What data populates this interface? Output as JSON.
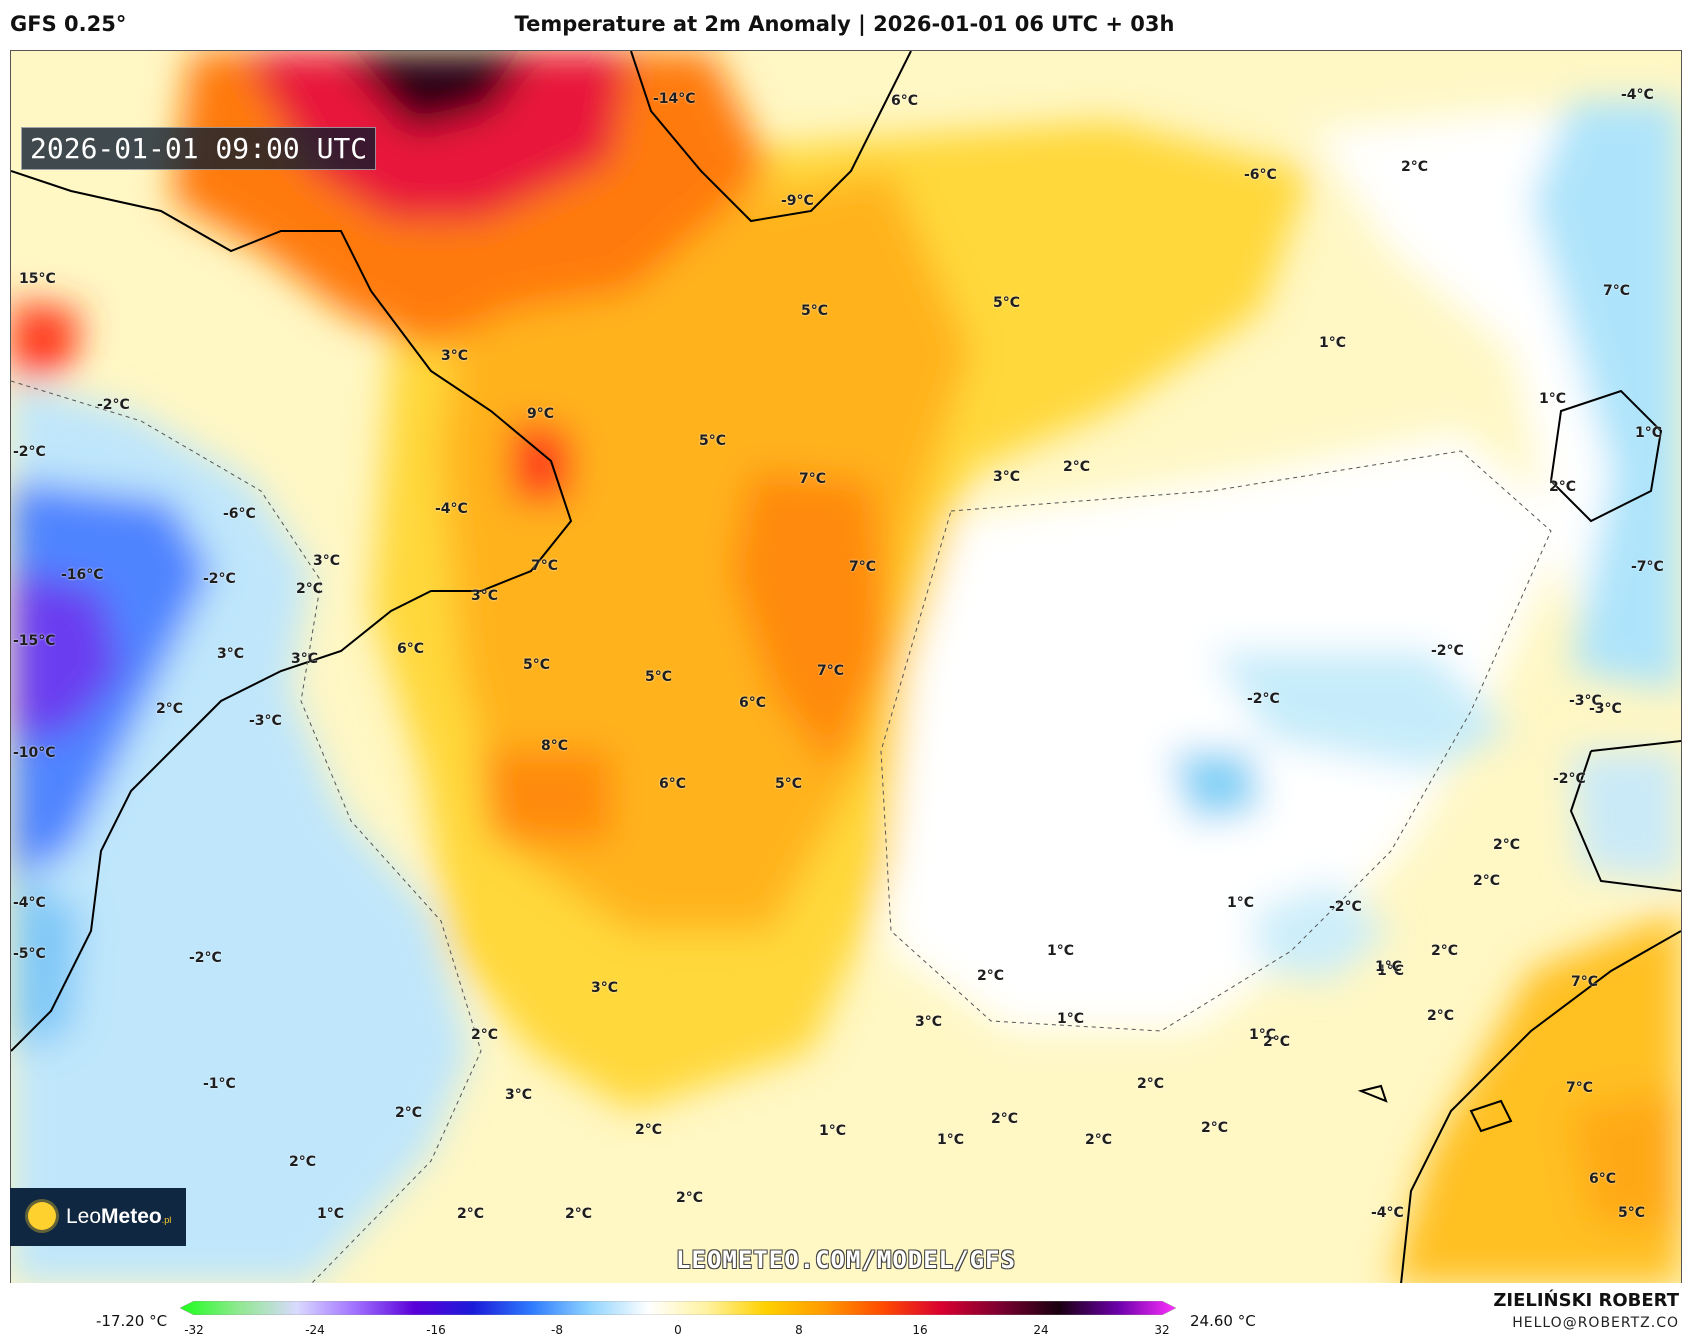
{
  "header": {
    "model": "GFS 0.25°",
    "title": "Temperature at 2m Anomaly | 2026-01-01 06 UTC + 03h"
  },
  "map": {
    "valid_time": "2026-01-01 09:00 UTC",
    "watermark_url": "LEOMETEO.COM/MODEL/GFS",
    "labels": [
      {
        "text": "-14°C"
      },
      {
        "text": "6°C"
      },
      {
        "text": "-9°C"
      },
      {
        "text": "-6°C"
      },
      {
        "text": "-4°C"
      },
      {
        "text": "2°C"
      },
      {
        "text": "15°C"
      },
      {
        "text": "5°C"
      },
      {
        "text": "5°C"
      },
      {
        "text": "1°C"
      },
      {
        "text": "1°C"
      },
      {
        "text": "-2°C"
      },
      {
        "text": "7°C"
      },
      {
        "text": "9°C"
      },
      {
        "text": "1°C"
      },
      {
        "text": "-2°C"
      },
      {
        "text": "3°C"
      },
      {
        "text": "5°C"
      },
      {
        "text": "7°C"
      },
      {
        "text": "3°C"
      },
      {
        "text": "2°C"
      },
      {
        "text": "-6°C"
      },
      {
        "text": "-4°C"
      },
      {
        "text": "-16°C"
      },
      {
        "text": "-2°C"
      },
      {
        "text": "3°C"
      },
      {
        "text": "2°C"
      },
      {
        "text": "7°C"
      },
      {
        "text": "3°C"
      },
      {
        "text": "7°C"
      },
      {
        "text": "-7°C"
      },
      {
        "text": "-15°C"
      },
      {
        "text": "3°C"
      },
      {
        "text": "3°C"
      },
      {
        "text": "6°C"
      },
      {
        "text": "5°C"
      },
      {
        "text": "5°C"
      },
      {
        "text": "7°C"
      },
      {
        "text": "-2°C"
      },
      {
        "text": "2°C"
      },
      {
        "text": "-2°C"
      },
      {
        "text": "-3°C"
      },
      {
        "text": "-3°C"
      },
      {
        "text": "6°C"
      },
      {
        "text": "-10°C"
      },
      {
        "text": "8°C"
      },
      {
        "text": "6°C"
      },
      {
        "text": "5°C"
      },
      {
        "text": "2°C"
      },
      {
        "text": "-2°C"
      },
      {
        "text": "-3°C"
      },
      {
        "text": "2°C"
      },
      {
        "text": "-4°C"
      },
      {
        "text": "2°C"
      },
      {
        "text": "-5°C"
      },
      {
        "text": "-2°C"
      },
      {
        "text": "-2°C"
      },
      {
        "text": "3°C"
      },
      {
        "text": "1°C"
      },
      {
        "text": "1°C"
      },
      {
        "text": "1°C"
      },
      {
        "text": "2°C"
      },
      {
        "text": "2°C"
      },
      {
        "text": "1°C"
      },
      {
        "text": "1°C"
      },
      {
        "text": "2°C"
      },
      {
        "text": "3°C"
      },
      {
        "text": "2°C"
      },
      {
        "text": "1°C"
      },
      {
        "text": "2°C"
      },
      {
        "text": "7°C"
      },
      {
        "text": "-1°C"
      },
      {
        "text": "3°C"
      },
      {
        "text": "2°C"
      },
      {
        "text": "2°C"
      },
      {
        "text": "1°C"
      },
      {
        "text": "2°C"
      },
      {
        "text": "1°C"
      },
      {
        "text": "2°C"
      },
      {
        "text": "2°C"
      },
      {
        "text": "2°C"
      },
      {
        "text": "7°C"
      },
      {
        "text": "2°C"
      },
      {
        "text": "2°C"
      },
      {
        "text": "6°C"
      },
      {
        "text": "1°C"
      },
      {
        "text": "2°C"
      },
      {
        "text": "2°C"
      },
      {
        "text": "-4°C"
      },
      {
        "text": "5°C"
      }
    ]
  },
  "logo": {
    "brand_light": "Leo",
    "brand_bold": "Meteo",
    "brand_suffix": ".pl"
  },
  "footer": {
    "min_value": "-17.20 °C",
    "max_value": "24.60 °C",
    "ticks": [
      "-32",
      "-24",
      "-16",
      "-8",
      "0",
      "8",
      "16",
      "24",
      "32"
    ],
    "author": "ZIELIŃSKI ROBERT",
    "email": "HELLO@ROBERTZ.CO"
  },
  "colorbar": {
    "min": -32,
    "max": 32,
    "stops": [
      "#1aff1a",
      "#90e890",
      "#d9d9ff",
      "#a070ff",
      "#5a00d8",
      "#1b1bd8",
      "#2e7bff",
      "#8fd4ff",
      "#ffffff",
      "#fff2a0",
      "#ffd100",
      "#ff9a00",
      "#ff4a00",
      "#d80030",
      "#7a0030",
      "#1a0010",
      "#6a00a8",
      "#ff30ff"
    ]
  },
  "colors": {
    "ocean_white": "#ffffff",
    "warm_yellow": "#ffd84a",
    "warm_orange": "#ff9d10",
    "hot_red": "#e8143a",
    "cold_blue": "#3b63f0",
    "pale_blue": "#bfe8fb"
  }
}
